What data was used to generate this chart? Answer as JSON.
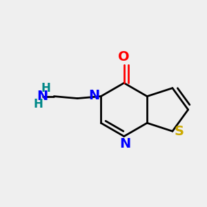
{
  "bg_color": "#efefef",
  "bond_color": "#000000",
  "N_color": "#0000ff",
  "O_color": "#ff0000",
  "S_color": "#ccaa00",
  "NH2_N_color": "#0000ff",
  "NH2_H_color": "#008888",
  "line_width": 2.0,
  "font_size": 14,
  "fig_size": [
    3.0,
    3.0
  ],
  "dpi": 100,
  "xlim": [
    0.0,
    1.0
  ],
  "ylim": [
    0.1,
    0.9
  ]
}
